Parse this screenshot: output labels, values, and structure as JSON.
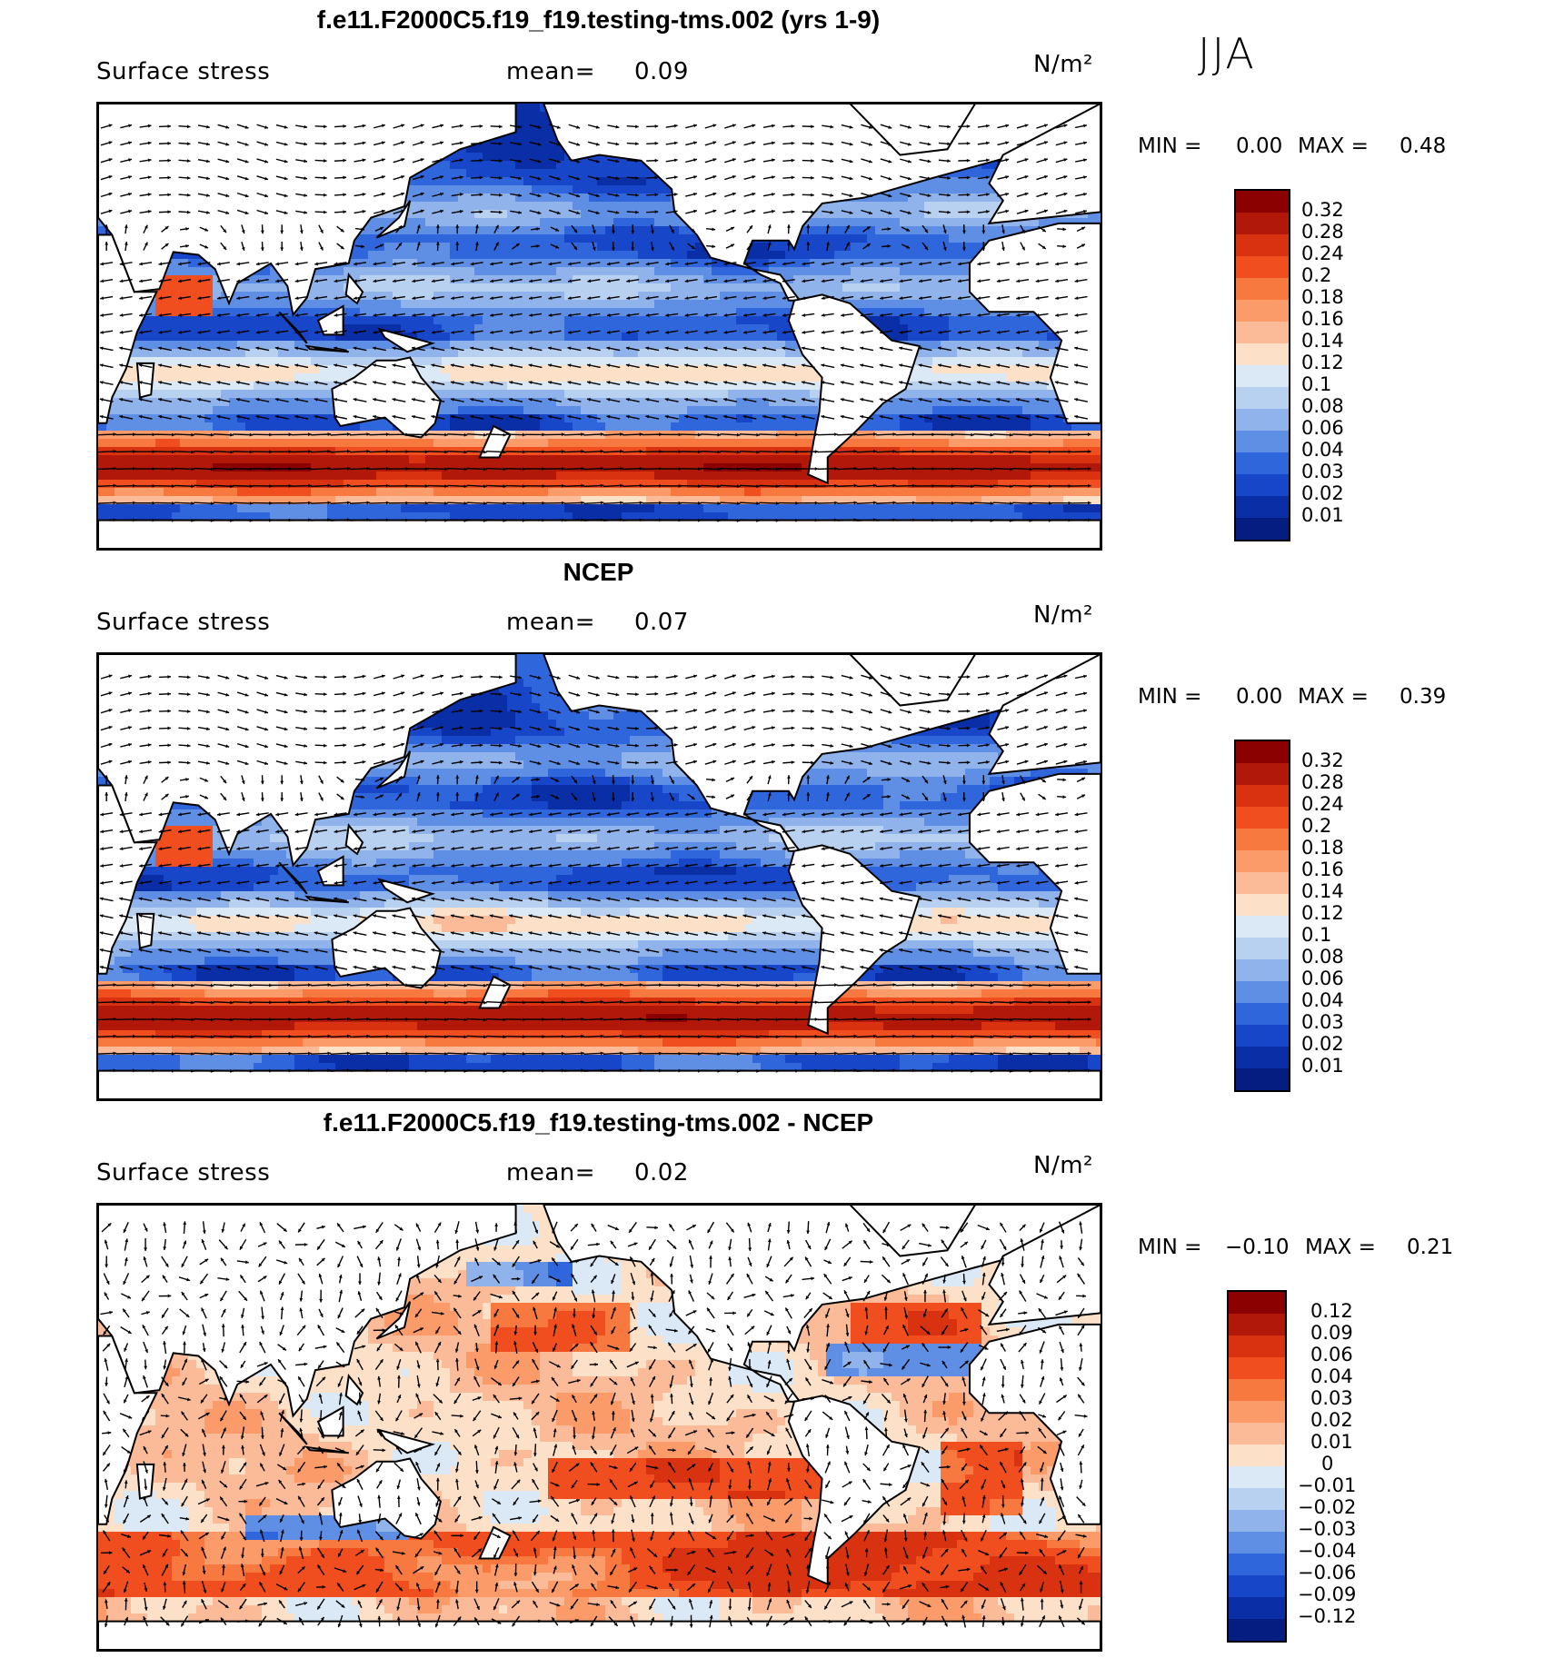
{
  "season": "JJA",
  "panels": [
    {
      "title": "f.e11.F2000C5.f19_f19.testing-tms.002 (yrs 1-9)",
      "variable": "Surface stress",
      "mean_label": "mean=",
      "mean_value": "0.09",
      "units": "N/m²",
      "min_label": "MIN =",
      "min_value": "0.00",
      "max_label": "MAX =",
      "max_value": "0.48",
      "kind": "abs",
      "colorbar": {
        "levels": [
          "0.32",
          "0.28",
          "0.24",
          "0.2",
          "0.18",
          "0.16",
          "0.14",
          "0.12",
          "0.1",
          "0.08",
          "0.06",
          "0.04",
          "0.03",
          "0.02",
          "0.01"
        ],
        "colors": [
          "#8b0000",
          "#b2180a",
          "#d93210",
          "#f04e1f",
          "#f8793f",
          "#fb9b6a",
          "#fcbb98",
          "#fde0c8",
          "#dbe9f7",
          "#b9d1f0",
          "#8fb3ea",
          "#5f8fe4",
          "#2f66dc",
          "#1746c8",
          "#0a2ea6",
          "#051c80"
        ]
      }
    },
    {
      "title": "NCEP",
      "variable": "Surface stress",
      "mean_label": "mean=",
      "mean_value": "0.07",
      "units": "N/m²",
      "min_label": "MIN =",
      "min_value": "0.00",
      "max_label": "MAX =",
      "max_value": "0.39",
      "kind": "abs",
      "colorbar": {
        "levels": [
          "0.32",
          "0.28",
          "0.24",
          "0.2",
          "0.18",
          "0.16",
          "0.14",
          "0.12",
          "0.1",
          "0.08",
          "0.06",
          "0.04",
          "0.03",
          "0.02",
          "0.01"
        ],
        "colors": [
          "#8b0000",
          "#b2180a",
          "#d93210",
          "#f04e1f",
          "#f8793f",
          "#fb9b6a",
          "#fcbb98",
          "#fde0c8",
          "#dbe9f7",
          "#b9d1f0",
          "#8fb3ea",
          "#5f8fe4",
          "#2f66dc",
          "#1746c8",
          "#0a2ea6",
          "#051c80"
        ]
      }
    },
    {
      "title": "f.e11.F2000C5.f19_f19.testing-tms.002 - NCEP",
      "variable": "Surface stress",
      "mean_label": "mean=",
      "mean_value": "0.02",
      "units": "N/m²",
      "min_label": "MIN =",
      "min_value": "−0.10",
      "max_label": "MAX =",
      "max_value": "0.21",
      "kind": "diff",
      "colorbar": {
        "levels": [
          "0.12",
          "0.09",
          "0.06",
          "0.04",
          "0.03",
          "0.02",
          "0.01",
          "0",
          "−0.01",
          "−0.02",
          "−0.03",
          "−0.04",
          "−0.06",
          "−0.09",
          "−0.12"
        ],
        "colors": [
          "#8b0000",
          "#b2180a",
          "#d93210",
          "#f04e1f",
          "#f8793f",
          "#fb9b6a",
          "#fcbb98",
          "#fde0c8",
          "#dbe9f7",
          "#b9d1f0",
          "#8fb3ea",
          "#5f8fe4",
          "#2f66dc",
          "#1746c8",
          "#0a2ea6",
          "#051c80"
        ]
      }
    }
  ]
}
